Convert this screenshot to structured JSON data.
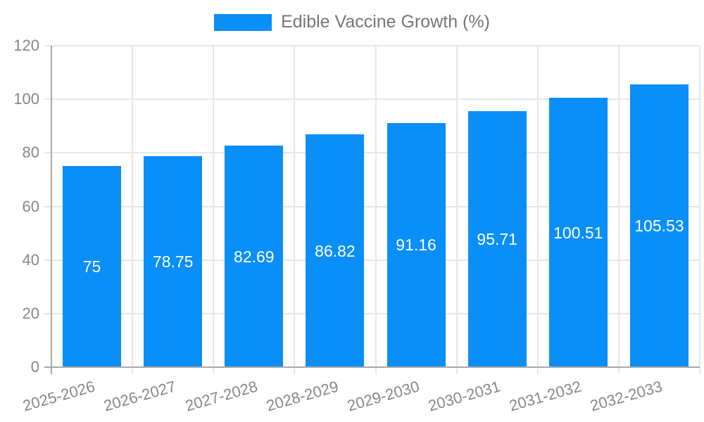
{
  "chart_data": {
    "type": "bar",
    "title": "Edible Vaccine Growth (%)",
    "legend": {
      "label": "Edible Vaccine Growth (%)",
      "position": "top"
    },
    "categories": [
      "2025-2026",
      "2026-2027",
      "2027-2028",
      "2028-2029",
      "2029-2030",
      "2030-2031",
      "2031-2032",
      "2032-2033"
    ],
    "series": [
      {
        "name": "Edible Vaccine Growth (%)",
        "values": [
          75,
          78.75,
          82.69,
          86.82,
          91.16,
          95.71,
          100.51,
          105.53
        ],
        "value_labels": [
          "75",
          "78.75",
          "82.69",
          "86.82",
          "91.16",
          "95.71",
          "100.51",
          "105.53"
        ]
      }
    ],
    "xlabel": "",
    "ylabel": "",
    "ylim": [
      0,
      120
    ],
    "yticks": [
      0,
      20,
      40,
      60,
      80,
      100,
      120
    ],
    "grid": true,
    "x_label_rotation_deg": -16,
    "colors": {
      "bar": "#0a8ef8",
      "grid": "#e6e6e6",
      "axis": "#a9a9a9",
      "tick_text": "#878787",
      "legend_text": "#757575",
      "value_text": "#ffffff"
    }
  }
}
